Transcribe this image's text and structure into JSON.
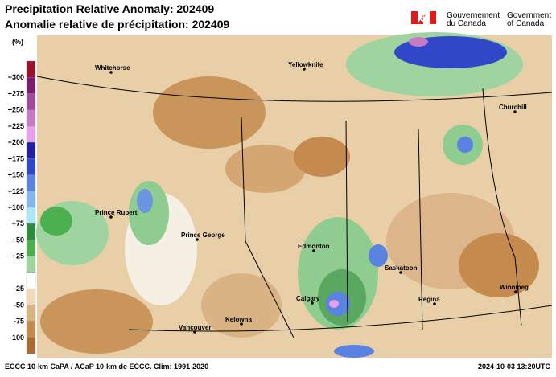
{
  "header": {
    "title_en": "Precipitation Relative Anomaly: 202409",
    "title_fr": "Anomalie relative de précipitation: 202409",
    "gov_fr": [
      "Gouvernement",
      "du Canada"
    ],
    "gov_en": [
      "Government",
      "of Canada"
    ]
  },
  "legend": {
    "unit": "(%)",
    "labels": [
      "+300",
      "+275",
      "+250",
      "+225",
      "+200",
      "+175",
      "+150",
      "+125",
      "+100",
      "+75",
      "+50",
      "+25",
      "-25",
      "-50",
      "-75",
      "-100"
    ]
  },
  "cities": [
    "Whitehorse",
    "Yellowknife",
    "Churchill",
    "Prince Rupert",
    "Prince George",
    "Edmonton",
    "Saskatoon",
    "Calgary",
    "Regina",
    "Winnipeg",
    "Kelowna",
    "Vancouver"
  ],
  "footer": {
    "source": "ECCC 10-km CaPA / ACaP 10-km de ECCC. Clim: 1991-2020",
    "timestamp": "2024-10-03 13:20UTC"
  }
}
